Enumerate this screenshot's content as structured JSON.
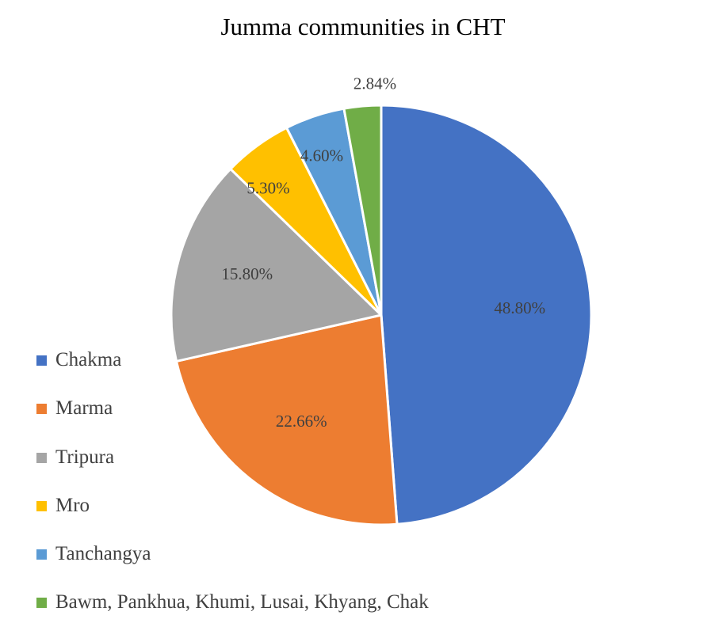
{
  "chart_data": {
    "type": "pie",
    "title": "Jumma communities in CHT",
    "categories": [
      "Chakma",
      "Marma",
      "Tripura",
      "Mro",
      "Tanchangya",
      "Bawm, Pankhua, Khumi, Lusai, Khyang, Chak"
    ],
    "values": [
      48.8,
      22.66,
      15.8,
      5.3,
      4.6,
      2.84
    ],
    "data_labels": [
      "48.80%",
      "22.66%",
      "15.80%",
      "5.30%",
      "4.60%",
      "2.84%"
    ],
    "colors": [
      "#4472C4",
      "#ED7D31",
      "#A5A5A5",
      "#FFC000",
      "#5B9BD5",
      "#70AD47"
    ],
    "legend_position": "left",
    "start_angle": "top, clockwise"
  }
}
